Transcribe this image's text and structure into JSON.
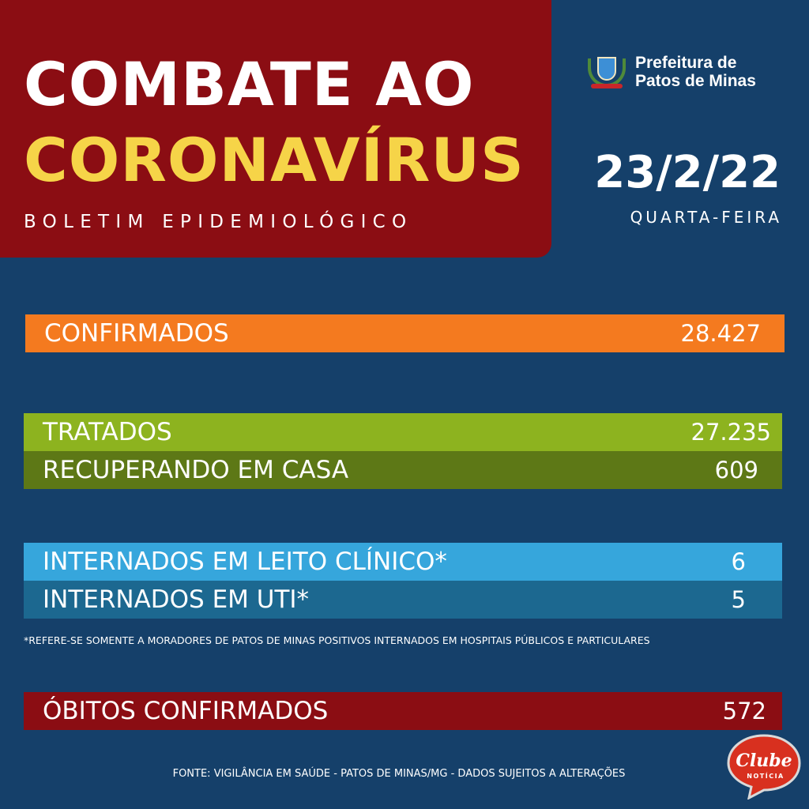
{
  "header": {
    "title_line1": "COMBATE AO",
    "title_line2": "CORONAVÍRUS",
    "subtitle": "BOLETIM EPIDEMIOLÓGICO"
  },
  "logo": {
    "line1": "Prefeitura de",
    "line2": "Patos de Minas"
  },
  "date": {
    "value": "23/2/22",
    "weekday": "QUARTA-FEIRA"
  },
  "stats": [
    {
      "label": "CONFIRMADOS",
      "value": "28.427",
      "color": "#f47a1f"
    },
    {
      "label": "TRATADOS",
      "value": "27.235",
      "color": "#8db31f"
    },
    {
      "label": "RECUPERANDO EM CASA",
      "value": "609",
      "color": "#5d7816"
    },
    {
      "label": "INTERNADOS EM LEITO CLÍNICO*",
      "value": "6",
      "color": "#36a6dc"
    },
    {
      "label": "INTERNADOS EM UTI*",
      "value": "5",
      "color": "#1c6890"
    },
    {
      "label": "ÓBITOS CONFIRMADOS",
      "value": "572",
      "color": "#8b0d13"
    }
  ],
  "footnote": "*REFERE-SE SOMENTE A MORADORES DE PATOS DE MINAS POSITIVOS INTERNADOS EM HOSPITAIS PÚBLICOS E PARTICULARES",
  "source": "FONTE: VIGILÂNCIA EM SAÚDE - PATOS DE MINAS/MG - DADOS SUJEITOS A ALTERAÇÕES",
  "badge": {
    "name": "Clube",
    "sub": "NOTÍCIA"
  }
}
